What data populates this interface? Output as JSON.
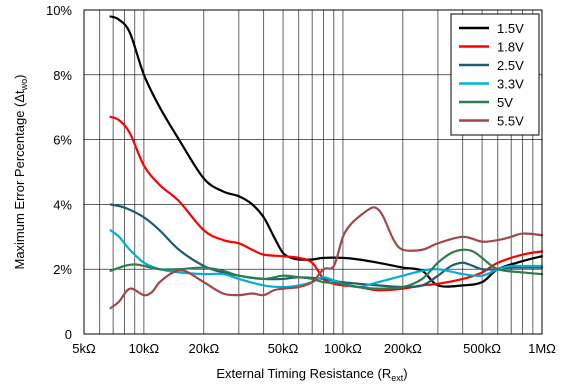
{
  "chart_data": {
    "type": "line",
    "xscale": "log",
    "xlim": [
      5000,
      1000000
    ],
    "ylim": [
      0,
      10
    ],
    "grid": true,
    "legend_position": "top-right",
    "xlabel_main": "External Timing Resistance (R",
    "xlabel_sub": "ext",
    "xlabel_close": ")",
    "ylabel_main": "Maximum Error Percentage (Δt",
    "ylabel_sub": "wo",
    "ylabel_close": ")",
    "x_ticks": [
      {
        "value": 5000,
        "label": "5kΩ"
      },
      {
        "value": 10000,
        "label": "10kΩ"
      },
      {
        "value": 20000,
        "label": "20kΩ"
      },
      {
        "value": 50000,
        "label": "50kΩ"
      },
      {
        "value": 100000,
        "label": "100kΩ"
      },
      {
        "value": 200000,
        "label": "200kΩ"
      },
      {
        "value": 500000,
        "label": "500kΩ"
      },
      {
        "value": 1000000,
        "label": "1MΩ"
      }
    ],
    "y_ticks": [
      {
        "value": 0,
        "label": "0"
      },
      {
        "value": 2,
        "label": "2%"
      },
      {
        "value": 4,
        "label": "4%"
      },
      {
        "value": 6,
        "label": "6%"
      },
      {
        "value": 8,
        "label": "8%"
      },
      {
        "value": 10,
        "label": "10%"
      }
    ],
    "series": [
      {
        "name": "1.5V",
        "color": "#000000",
        "x": [
          6800,
          7500,
          8500,
          10000,
          12000,
          15000,
          20000,
          25000,
          30000,
          35000,
          40000,
          45000,
          50000,
          55000,
          60000,
          70000,
          80000,
          100000,
          120000,
          150000,
          200000,
          250000,
          300000,
          400000,
          500000,
          600000,
          800000,
          1000000
        ],
        "y": [
          9.8,
          9.7,
          9.3,
          8.0,
          7.0,
          6.0,
          4.8,
          4.4,
          4.25,
          4.0,
          3.6,
          3.0,
          2.5,
          2.35,
          2.3,
          2.3,
          2.35,
          2.35,
          2.3,
          2.2,
          2.05,
          1.95,
          1.5,
          1.5,
          1.6,
          2.0,
          2.25,
          2.4
        ]
      },
      {
        "name": "1.8V",
        "color": "#ff0000",
        "x": [
          6800,
          7500,
          8500,
          10000,
          12000,
          15000,
          20000,
          25000,
          30000,
          35000,
          40000,
          50000,
          60000,
          70000,
          80000,
          90000,
          100000,
          120000,
          150000,
          200000,
          250000,
          300000,
          400000,
          500000,
          600000,
          800000,
          1000000
        ],
        "y": [
          6.7,
          6.6,
          6.2,
          5.2,
          4.6,
          4.1,
          3.2,
          2.9,
          2.8,
          2.6,
          2.45,
          2.4,
          2.35,
          2.2,
          1.7,
          1.55,
          1.5,
          1.45,
          1.35,
          1.4,
          1.5,
          1.55,
          1.7,
          1.9,
          2.2,
          2.45,
          2.55
        ]
      },
      {
        "name": "2.5V",
        "color": "#1f5c6e",
        "x": [
          6800,
          8000,
          10000,
          12000,
          15000,
          20000,
          25000,
          30000,
          40000,
          50000,
          60000,
          80000,
          100000,
          150000,
          200000,
          250000,
          300000,
          350000,
          400000,
          450000,
          500000,
          600000,
          700000,
          800000,
          1000000
        ],
        "y": [
          4.0,
          3.9,
          3.6,
          3.2,
          2.6,
          2.1,
          1.9,
          1.8,
          1.7,
          1.7,
          1.75,
          1.7,
          1.6,
          1.5,
          1.45,
          1.5,
          1.8,
          2.1,
          2.2,
          2.1,
          2.0,
          2.0,
          2.05,
          2.05,
          2.05
        ]
      },
      {
        "name": "3.3V",
        "color": "#00b0d8",
        "x": [
          6800,
          7500,
          8500,
          10000,
          12000,
          15000,
          20000,
          25000,
          30000,
          40000,
          50000,
          60000,
          70000,
          80000,
          100000,
          120000,
          150000,
          200000,
          250000,
          300000,
          400000,
          500000,
          600000,
          700000,
          800000,
          1000000
        ],
        "y": [
          3.2,
          3.0,
          2.6,
          2.2,
          2.0,
          1.9,
          1.85,
          1.85,
          1.7,
          1.5,
          1.45,
          1.5,
          1.6,
          1.75,
          1.55,
          1.45,
          1.6,
          1.8,
          1.95,
          2.0,
          1.85,
          1.8,
          2.0,
          2.1,
          2.1,
          2.1
        ]
      },
      {
        "name": "5V",
        "color": "#2e7d4f",
        "x": [
          6800,
          8000,
          9000,
          10000,
          12000,
          15000,
          20000,
          25000,
          30000,
          40000,
          50000,
          60000,
          70000,
          80000,
          100000,
          120000,
          150000,
          200000,
          250000,
          300000,
          350000,
          400000,
          450000,
          500000,
          600000,
          800000,
          1000000
        ],
        "y": [
          1.95,
          2.1,
          2.15,
          2.1,
          2.0,
          2.0,
          2.05,
          1.95,
          1.8,
          1.7,
          1.8,
          1.75,
          1.7,
          1.6,
          1.55,
          1.45,
          1.4,
          1.45,
          1.7,
          2.2,
          2.5,
          2.6,
          2.55,
          2.35,
          2.0,
          1.9,
          1.85
        ]
      },
      {
        "name": "5.5V",
        "color": "#a0474a",
        "x": [
          6800,
          7500,
          8500,
          10000,
          11000,
          12000,
          14000,
          16000,
          20000,
          25000,
          30000,
          35000,
          40000,
          45000,
          50000,
          60000,
          70000,
          80000,
          90000,
          100000,
          110000,
          125000,
          140000,
          150000,
          160000,
          180000,
          200000,
          250000,
          300000,
          400000,
          500000,
          600000,
          700000,
          800000,
          1000000
        ],
        "y": [
          0.8,
          1.0,
          1.4,
          1.2,
          1.3,
          1.6,
          1.9,
          1.95,
          1.6,
          1.25,
          1.2,
          1.25,
          1.2,
          1.35,
          1.4,
          1.45,
          1.6,
          2.0,
          2.1,
          3.0,
          3.4,
          3.7,
          3.9,
          3.85,
          3.6,
          2.9,
          2.6,
          2.6,
          2.8,
          3.0,
          2.85,
          2.9,
          3.0,
          3.1,
          3.05
        ]
      }
    ]
  }
}
